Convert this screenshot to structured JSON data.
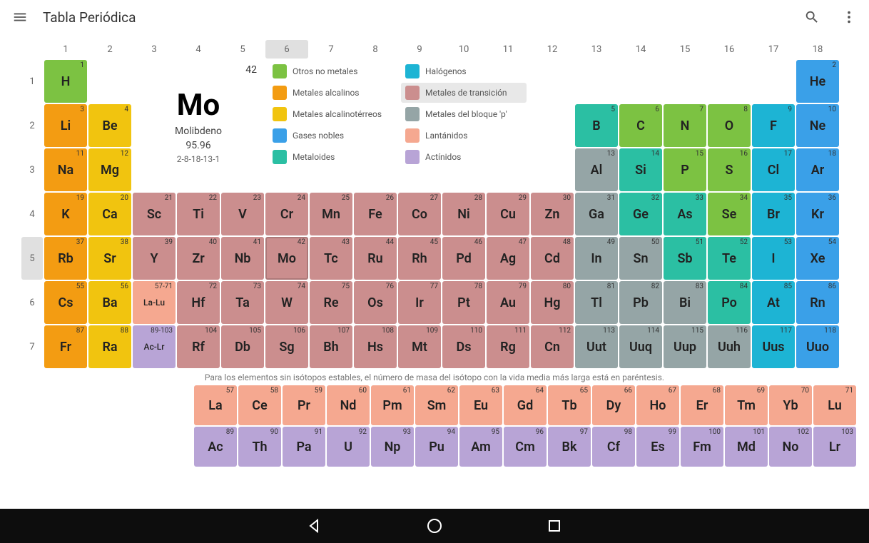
{
  "appbar": {
    "title": "Tabla Periódica"
  },
  "colors": {
    "other_nonmetals": "#7cc242",
    "alkali_metals": "#f39c12",
    "alkaline_earth": "#f1c40f",
    "noble_gases": "#3aa0e8",
    "metalloids": "#2bbfa3",
    "halogens": "#1db4d4",
    "transition_metals": "#cb8e8e",
    "post_transition": "#95a5a6",
    "lanthanides": "#f5a890",
    "actinides": "#b8a4d6"
  },
  "detail": {
    "number": "42",
    "symbol": "Mo",
    "name": "Molibdeno",
    "mass": "95.96",
    "config": "2-8-18-13-1"
  },
  "legend": [
    {
      "key": "other_nonmetals",
      "label": "Otros no metales"
    },
    {
      "key": "halogens",
      "label": "Halógenos"
    },
    {
      "key": "alkali_metals",
      "label": "Metales alcalinos"
    },
    {
      "key": "transition_metals",
      "label": "Metales de transición",
      "selected": true
    },
    {
      "key": "alkaline_earth",
      "label": "Metales alcalinotérreos"
    },
    {
      "key": "post_transition",
      "label": "Metales del bloque 'p'"
    },
    {
      "key": "noble_gases",
      "label": "Gases nobles"
    },
    {
      "key": "lanthanides",
      "label": "Lantánidos"
    },
    {
      "key": "metalloids",
      "label": "Metaloides"
    },
    {
      "key": "actinides",
      "label": "Actínidos"
    }
  ],
  "columns": [
    "1",
    "2",
    "3",
    "4",
    "5",
    "6",
    "7",
    "8",
    "9",
    "10",
    "11",
    "12",
    "13",
    "14",
    "15",
    "16",
    "17",
    "18"
  ],
  "rows": [
    "1",
    "2",
    "3",
    "4",
    "5",
    "6",
    "7"
  ],
  "selected_col": "6",
  "selected_row": "5",
  "elements": [
    {
      "n": "1",
      "s": "H",
      "r": 1,
      "c": 1,
      "cat": "other_nonmetals"
    },
    {
      "n": "2",
      "s": "He",
      "r": 1,
      "c": 18,
      "cat": "noble_gases"
    },
    {
      "n": "3",
      "s": "Li",
      "r": 2,
      "c": 1,
      "cat": "alkali_metals"
    },
    {
      "n": "4",
      "s": "Be",
      "r": 2,
      "c": 2,
      "cat": "alkaline_earth"
    },
    {
      "n": "5",
      "s": "B",
      "r": 2,
      "c": 13,
      "cat": "metalloids"
    },
    {
      "n": "6",
      "s": "C",
      "r": 2,
      "c": 14,
      "cat": "other_nonmetals"
    },
    {
      "n": "7",
      "s": "N",
      "r": 2,
      "c": 15,
      "cat": "other_nonmetals"
    },
    {
      "n": "8",
      "s": "O",
      "r": 2,
      "c": 16,
      "cat": "other_nonmetals"
    },
    {
      "n": "9",
      "s": "F",
      "r": 2,
      "c": 17,
      "cat": "halogens"
    },
    {
      "n": "10",
      "s": "Ne",
      "r": 2,
      "c": 18,
      "cat": "noble_gases"
    },
    {
      "n": "11",
      "s": "Na",
      "r": 3,
      "c": 1,
      "cat": "alkali_metals"
    },
    {
      "n": "12",
      "s": "Mg",
      "r": 3,
      "c": 2,
      "cat": "alkaline_earth"
    },
    {
      "n": "13",
      "s": "Al",
      "r": 3,
      "c": 13,
      "cat": "post_transition"
    },
    {
      "n": "14",
      "s": "Si",
      "r": 3,
      "c": 14,
      "cat": "metalloids"
    },
    {
      "n": "15",
      "s": "P",
      "r": 3,
      "c": 15,
      "cat": "other_nonmetals"
    },
    {
      "n": "16",
      "s": "S",
      "r": 3,
      "c": 16,
      "cat": "other_nonmetals"
    },
    {
      "n": "17",
      "s": "Cl",
      "r": 3,
      "c": 17,
      "cat": "halogens"
    },
    {
      "n": "18",
      "s": "Ar",
      "r": 3,
      "c": 18,
      "cat": "noble_gases"
    },
    {
      "n": "19",
      "s": "K",
      "r": 4,
      "c": 1,
      "cat": "alkali_metals"
    },
    {
      "n": "20",
      "s": "Ca",
      "r": 4,
      "c": 2,
      "cat": "alkaline_earth"
    },
    {
      "n": "21",
      "s": "Sc",
      "r": 4,
      "c": 3,
      "cat": "transition_metals"
    },
    {
      "n": "22",
      "s": "Ti",
      "r": 4,
      "c": 4,
      "cat": "transition_metals"
    },
    {
      "n": "23",
      "s": "V",
      "r": 4,
      "c": 5,
      "cat": "transition_metals"
    },
    {
      "n": "24",
      "s": "Cr",
      "r": 4,
      "c": 6,
      "cat": "transition_metals"
    },
    {
      "n": "25",
      "s": "Mn",
      "r": 4,
      "c": 7,
      "cat": "transition_metals"
    },
    {
      "n": "26",
      "s": "Fe",
      "r": 4,
      "c": 8,
      "cat": "transition_metals"
    },
    {
      "n": "27",
      "s": "Co",
      "r": 4,
      "c": 9,
      "cat": "transition_metals"
    },
    {
      "n": "28",
      "s": "Ni",
      "r": 4,
      "c": 10,
      "cat": "transition_metals"
    },
    {
      "n": "29",
      "s": "Cu",
      "r": 4,
      "c": 11,
      "cat": "transition_metals"
    },
    {
      "n": "30",
      "s": "Zn",
      "r": 4,
      "c": 12,
      "cat": "transition_metals"
    },
    {
      "n": "31",
      "s": "Ga",
      "r": 4,
      "c": 13,
      "cat": "post_transition"
    },
    {
      "n": "32",
      "s": "Ge",
      "r": 4,
      "c": 14,
      "cat": "metalloids"
    },
    {
      "n": "33",
      "s": "As",
      "r": 4,
      "c": 15,
      "cat": "metalloids"
    },
    {
      "n": "34",
      "s": "Se",
      "r": 4,
      "c": 16,
      "cat": "other_nonmetals"
    },
    {
      "n": "35",
      "s": "Br",
      "r": 4,
      "c": 17,
      "cat": "halogens"
    },
    {
      "n": "36",
      "s": "Kr",
      "r": 4,
      "c": 18,
      "cat": "noble_gases"
    },
    {
      "n": "37",
      "s": "Rb",
      "r": 5,
      "c": 1,
      "cat": "alkali_metals"
    },
    {
      "n": "38",
      "s": "Sr",
      "r": 5,
      "c": 2,
      "cat": "alkaline_earth"
    },
    {
      "n": "39",
      "s": "Y",
      "r": 5,
      "c": 3,
      "cat": "transition_metals"
    },
    {
      "n": "40",
      "s": "Zr",
      "r": 5,
      "c": 4,
      "cat": "transition_metals"
    },
    {
      "n": "41",
      "s": "Nb",
      "r": 5,
      "c": 5,
      "cat": "transition_metals"
    },
    {
      "n": "42",
      "s": "Mo",
      "r": 5,
      "c": 6,
      "cat": "transition_metals",
      "selected": true
    },
    {
      "n": "43",
      "s": "Tc",
      "r": 5,
      "c": 7,
      "cat": "transition_metals"
    },
    {
      "n": "44",
      "s": "Ru",
      "r": 5,
      "c": 8,
      "cat": "transition_metals"
    },
    {
      "n": "45",
      "s": "Rh",
      "r": 5,
      "c": 9,
      "cat": "transition_metals"
    },
    {
      "n": "46",
      "s": "Pd",
      "r": 5,
      "c": 10,
      "cat": "transition_metals"
    },
    {
      "n": "47",
      "s": "Ag",
      "r": 5,
      "c": 11,
      "cat": "transition_metals"
    },
    {
      "n": "48",
      "s": "Cd",
      "r": 5,
      "c": 12,
      "cat": "transition_metals"
    },
    {
      "n": "49",
      "s": "In",
      "r": 5,
      "c": 13,
      "cat": "post_transition"
    },
    {
      "n": "50",
      "s": "Sn",
      "r": 5,
      "c": 14,
      "cat": "post_transition"
    },
    {
      "n": "51",
      "s": "Sb",
      "r": 5,
      "c": 15,
      "cat": "metalloids"
    },
    {
      "n": "52",
      "s": "Te",
      "r": 5,
      "c": 16,
      "cat": "metalloids"
    },
    {
      "n": "53",
      "s": "I",
      "r": 5,
      "c": 17,
      "cat": "halogens"
    },
    {
      "n": "54",
      "s": "Xe",
      "r": 5,
      "c": 18,
      "cat": "noble_gases"
    },
    {
      "n": "55",
      "s": "Cs",
      "r": 6,
      "c": 1,
      "cat": "alkali_metals"
    },
    {
      "n": "56",
      "s": "Ba",
      "r": 6,
      "c": 2,
      "cat": "alkaline_earth"
    },
    {
      "n": "57-71",
      "s": "La-Lu",
      "r": 6,
      "c": 3,
      "cat": "lanthanides",
      "placeholder": true
    },
    {
      "n": "72",
      "s": "Hf",
      "r": 6,
      "c": 4,
      "cat": "transition_metals"
    },
    {
      "n": "73",
      "s": "Ta",
      "r": 6,
      "c": 5,
      "cat": "transition_metals"
    },
    {
      "n": "74",
      "s": "W",
      "r": 6,
      "c": 6,
      "cat": "transition_metals"
    },
    {
      "n": "75",
      "s": "Re",
      "r": 6,
      "c": 7,
      "cat": "transition_metals"
    },
    {
      "n": "76",
      "s": "Os",
      "r": 6,
      "c": 8,
      "cat": "transition_metals"
    },
    {
      "n": "77",
      "s": "Ir",
      "r": 6,
      "c": 9,
      "cat": "transition_metals"
    },
    {
      "n": "78",
      "s": "Pt",
      "r": 6,
      "c": 10,
      "cat": "transition_metals"
    },
    {
      "n": "79",
      "s": "Au",
      "r": 6,
      "c": 11,
      "cat": "transition_metals"
    },
    {
      "n": "80",
      "s": "Hg",
      "r": 6,
      "c": 12,
      "cat": "transition_metals"
    },
    {
      "n": "81",
      "s": "Tl",
      "r": 6,
      "c": 13,
      "cat": "post_transition"
    },
    {
      "n": "82",
      "s": "Pb",
      "r": 6,
      "c": 14,
      "cat": "post_transition"
    },
    {
      "n": "83",
      "s": "Bi",
      "r": 6,
      "c": 15,
      "cat": "post_transition"
    },
    {
      "n": "84",
      "s": "Po",
      "r": 6,
      "c": 16,
      "cat": "metalloids"
    },
    {
      "n": "85",
      "s": "At",
      "r": 6,
      "c": 17,
      "cat": "halogens"
    },
    {
      "n": "86",
      "s": "Rn",
      "r": 6,
      "c": 18,
      "cat": "noble_gases"
    },
    {
      "n": "87",
      "s": "Fr",
      "r": 7,
      "c": 1,
      "cat": "alkali_metals"
    },
    {
      "n": "88",
      "s": "Ra",
      "r": 7,
      "c": 2,
      "cat": "alkaline_earth"
    },
    {
      "n": "89-103",
      "s": "Ac-Lr",
      "r": 7,
      "c": 3,
      "cat": "actinides",
      "placeholder": true
    },
    {
      "n": "104",
      "s": "Rf",
      "r": 7,
      "c": 4,
      "cat": "transition_metals"
    },
    {
      "n": "105",
      "s": "Db",
      "r": 7,
      "c": 5,
      "cat": "transition_metals"
    },
    {
      "n": "106",
      "s": "Sg",
      "r": 7,
      "c": 6,
      "cat": "transition_metals"
    },
    {
      "n": "107",
      "s": "Bh",
      "r": 7,
      "c": 7,
      "cat": "transition_metals"
    },
    {
      "n": "108",
      "s": "Hs",
      "r": 7,
      "c": 8,
      "cat": "transition_metals"
    },
    {
      "n": "109",
      "s": "Mt",
      "r": 7,
      "c": 9,
      "cat": "transition_metals"
    },
    {
      "n": "110",
      "s": "Ds",
      "r": 7,
      "c": 10,
      "cat": "transition_metals"
    },
    {
      "n": "111",
      "s": "Rg",
      "r": 7,
      "c": 11,
      "cat": "transition_metals"
    },
    {
      "n": "112",
      "s": "Cn",
      "r": 7,
      "c": 12,
      "cat": "transition_metals"
    },
    {
      "n": "113",
      "s": "Uut",
      "r": 7,
      "c": 13,
      "cat": "post_transition"
    },
    {
      "n": "114",
      "s": "Uuq",
      "r": 7,
      "c": 14,
      "cat": "post_transition"
    },
    {
      "n": "115",
      "s": "Uup",
      "r": 7,
      "c": 15,
      "cat": "post_transition"
    },
    {
      "n": "116",
      "s": "Uuh",
      "r": 7,
      "c": 16,
      "cat": "post_transition"
    },
    {
      "n": "117",
      "s": "Uus",
      "r": 7,
      "c": 17,
      "cat": "halogens"
    },
    {
      "n": "118",
      "s": "Uuo",
      "r": 7,
      "c": 18,
      "cat": "noble_gases"
    }
  ],
  "lanthanides": [
    {
      "n": "57",
      "s": "La"
    },
    {
      "n": "58",
      "s": "Ce"
    },
    {
      "n": "59",
      "s": "Pr"
    },
    {
      "n": "60",
      "s": "Nd"
    },
    {
      "n": "61",
      "s": "Pm"
    },
    {
      "n": "62",
      "s": "Sm"
    },
    {
      "n": "63",
      "s": "Eu"
    },
    {
      "n": "64",
      "s": "Gd"
    },
    {
      "n": "65",
      "s": "Tb"
    },
    {
      "n": "66",
      "s": "Dy"
    },
    {
      "n": "67",
      "s": "Ho"
    },
    {
      "n": "68",
      "s": "Er"
    },
    {
      "n": "69",
      "s": "Tm"
    },
    {
      "n": "70",
      "s": "Yb"
    },
    {
      "n": "71",
      "s": "Lu"
    }
  ],
  "actinides": [
    {
      "n": "89",
      "s": "Ac"
    },
    {
      "n": "90",
      "s": "Th"
    },
    {
      "n": "91",
      "s": "Pa"
    },
    {
      "n": "92",
      "s": "U"
    },
    {
      "n": "93",
      "s": "Np"
    },
    {
      "n": "94",
      "s": "Pu"
    },
    {
      "n": "95",
      "s": "Am"
    },
    {
      "n": "96",
      "s": "Cm"
    },
    {
      "n": "97",
      "s": "Bk"
    },
    {
      "n": "98",
      "s": "Cf"
    },
    {
      "n": "99",
      "s": "Es"
    },
    {
      "n": "100",
      "s": "Fm"
    },
    {
      "n": "101",
      "s": "Md"
    },
    {
      "n": "102",
      "s": "No"
    },
    {
      "n": "103",
      "s": "Lr"
    }
  ],
  "footnote": "Para los elementos sin isótopos estables, el número de masa del isótopo con la vida media más larga está en paréntesis."
}
